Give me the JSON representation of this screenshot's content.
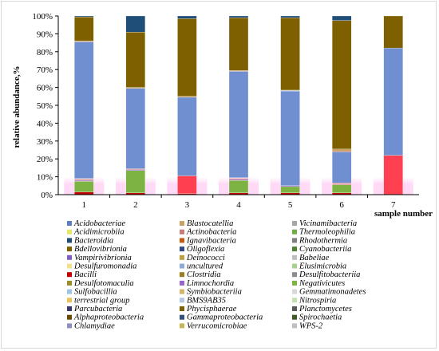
{
  "chart_data": {
    "type": "bar",
    "stacked": true,
    "percent_stacked": true,
    "ylabel": "relative abundance,%",
    "xlabel": "sample number",
    "ylim": [
      0,
      100
    ],
    "y_ticks": [
      "0%",
      "10%",
      "20%",
      "30%",
      "40%",
      "50%",
      "60%",
      "70%",
      "80%",
      "90%",
      "100%"
    ],
    "grid": false,
    "legend_position": "bottom",
    "categories": [
      "1",
      "2",
      "3",
      "4",
      "5",
      "6",
      "7"
    ],
    "series": [
      {
        "name": "Acidobacteriae",
        "color": "#5b7fbf",
        "values": [
          0,
          0,
          0,
          0,
          0,
          0,
          0
        ]
      },
      {
        "name": "Blastocatellia",
        "color": "#c9a066",
        "values": [
          0,
          0,
          0,
          0,
          0,
          0,
          0
        ]
      },
      {
        "name": "Vicinamibacteria",
        "color": "#a6a6a6",
        "values": [
          0,
          0,
          0,
          0,
          0,
          0,
          0
        ]
      },
      {
        "name": "Acidimicrobiia",
        "color": "#e5e566",
        "values": [
          0,
          0,
          0,
          0,
          0,
          0,
          0
        ]
      },
      {
        "name": "Actinobacteria",
        "color": "#c77b7b",
        "values": [
          0,
          0,
          0,
          0,
          0,
          0,
          0
        ]
      },
      {
        "name": "Thermoleophilia",
        "color": "#70ad47",
        "values": [
          0,
          0,
          0,
          0,
          0,
          0,
          0
        ]
      },
      {
        "name": "Bacteroidia",
        "color": "#1f4e79",
        "values": [
          0,
          0,
          0,
          0,
          0,
          0,
          0
        ]
      },
      {
        "name": "Ignavibacteria",
        "color": "#c55a11",
        "values": [
          0,
          0,
          0,
          0,
          0,
          0,
          0
        ]
      },
      {
        "name": "Rhodothermia",
        "color": "#7f7f7f",
        "values": [
          0,
          0,
          0,
          0,
          0,
          0,
          0
        ]
      },
      {
        "name": "Bdellovibrionia",
        "color": "#806000",
        "values": [
          0,
          0,
          0,
          0,
          0,
          0,
          0
        ]
      },
      {
        "name": "Oligoflexia",
        "color": "#2e4a87",
        "values": [
          0,
          0,
          0,
          0,
          0,
          0,
          0
        ]
      },
      {
        "name": "Cyanobacteriia",
        "color": "#548235",
        "values": [
          0,
          0,
          0,
          0,
          0,
          0,
          0
        ]
      },
      {
        "name": "Vampirivibrionia",
        "color": "#7f5fbf",
        "values": [
          0,
          0,
          0,
          0,
          0,
          0,
          0
        ]
      },
      {
        "name": "Deinococci",
        "color": "#bfa040",
        "values": [
          0,
          0,
          0,
          0,
          0,
          0,
          0
        ]
      },
      {
        "name": "Babeliae",
        "color": "#bfbfbf",
        "values": [
          0,
          0,
          0,
          0,
          0,
          0,
          0
        ]
      },
      {
        "name": "Desulfuromonadia",
        "color": "#f2e08c",
        "values": [
          0,
          0,
          0,
          0,
          0,
          0,
          0
        ]
      },
      {
        "name": "uncultured",
        "color": "#8eaadb",
        "values": [
          0,
          0,
          0,
          0,
          0,
          0,
          0
        ]
      },
      {
        "name": "Elusimicrobia",
        "color": "#a9d18e",
        "values": [
          0,
          0,
          0,
          0,
          0,
          0,
          0
        ]
      },
      {
        "name": "Bacilli",
        "color": "#c00000",
        "values": [
          0,
          0,
          0,
          0,
          0,
          0,
          0
        ]
      },
      {
        "name": "Clostridia",
        "color": "#9c7c1c",
        "values": [
          0,
          0,
          0,
          0,
          0,
          0,
          0
        ]
      },
      {
        "name": "Desulfitobacteriia",
        "color": "#8c8c8c",
        "values": [
          0,
          0,
          0,
          0,
          0,
          0,
          0
        ]
      },
      {
        "name": "Desulfotomaculia",
        "color": "#9e8c2c",
        "values": [
          0,
          0,
          0,
          0,
          0,
          0,
          0
        ]
      },
      {
        "name": "Limnochordia",
        "color": "#9966cc",
        "values": [
          0,
          0,
          0,
          0,
          0,
          0,
          0
        ]
      },
      {
        "name": "Negativicutes",
        "color": "#7cb342",
        "values": [
          0,
          0,
          0,
          0,
          0,
          0,
          0
        ]
      },
      {
        "name": "Sulfobacillia",
        "color": "#9dc3e6",
        "values": [
          0,
          0,
          0,
          0,
          0,
          0,
          0
        ]
      },
      {
        "name": "Symbiobacteriia",
        "color": "#d6b56a",
        "values": [
          0,
          0,
          0,
          0,
          0,
          0,
          0
        ]
      },
      {
        "name": "Gemmatimonadetes",
        "color": "#d9d9d9",
        "values": [
          0,
          0,
          0,
          0,
          0,
          0,
          0
        ]
      },
      {
        "name": "terrestrial group",
        "color": "#e6c35c",
        "values": [
          0,
          0,
          0,
          0,
          0,
          0,
          0
        ]
      },
      {
        "name": "BMS9AB35",
        "color": "#b4c7e7",
        "values": [
          0,
          0,
          0,
          0,
          0,
          0,
          0
        ]
      },
      {
        "name": "Nitrospiria",
        "color": "#c5e0b4",
        "values": [
          0,
          0,
          0,
          0,
          0,
          0,
          0
        ]
      },
      {
        "name": "Parcubacteria",
        "color": "#3a3a6a",
        "values": [
          0,
          0,
          0,
          0,
          0,
          0,
          0
        ]
      },
      {
        "name": "Phycisphaerae",
        "color": "#7f6000",
        "values": [
          0,
          0,
          0,
          0,
          0,
          0,
          0
        ]
      },
      {
        "name": "Planctomycetes",
        "color": "#595959",
        "values": [
          0,
          0,
          0,
          0,
          0,
          0,
          0
        ]
      },
      {
        "name": "Alphaproteobacteria",
        "color": "#6a4a00",
        "values": [
          0,
          0,
          0,
          0,
          0,
          0,
          0
        ]
      },
      {
        "name": "Gammaproteobacteria",
        "color": "#2f4f7f",
        "values": [
          0,
          0,
          0,
          0,
          0,
          0,
          0
        ]
      },
      {
        "name": "Spirochaetia",
        "color": "#3d5a27",
        "values": [
          0,
          0,
          0,
          0,
          0,
          0,
          0
        ]
      },
      {
        "name": "Chlamydiae",
        "color": "#8f8fbf",
        "values": [
          0,
          0,
          0,
          0,
          0,
          0,
          0
        ]
      },
      {
        "name": "Verrucomicrobiae",
        "color": "#c9b458",
        "values": [
          0,
          0,
          0,
          0,
          0,
          0,
          0
        ]
      },
      {
        "name": "WPS-2",
        "color": "#bfbfbf",
        "values": [
          0,
          0,
          0,
          0,
          0,
          0,
          0
        ]
      }
    ],
    "stacks": [
      {
        "name": "Bacilli",
        "color": "#c00000",
        "values": [
          1.5,
          1,
          0.5,
          1,
          1,
          1,
          0
        ]
      },
      {
        "name": "Negativicutes",
        "color": "#7cb342",
        "values": [
          6,
          12.5,
          0,
          7,
          3.5,
          4.5,
          0
        ]
      },
      {
        "name": "Clostridia",
        "color": "#ff4050",
        "values": [
          0,
          0,
          10,
          0,
          0,
          0,
          22
        ]
      },
      {
        "name": "Limnochordia",
        "color": "#9966cc",
        "values": [
          0.5,
          0.5,
          0,
          0.5,
          0.5,
          0,
          0
        ]
      },
      {
        "name": "Desulfotomaculia",
        "color": "#c77b7b",
        "values": [
          0.5,
          0.5,
          0,
          0.5,
          0,
          0.5,
          0
        ]
      },
      {
        "name": "Sulfobacillia",
        "color": "#f4b6c2",
        "values": [
          0.5,
          0,
          0,
          0.5,
          0,
          0,
          0
        ]
      },
      {
        "name": "Symbiobacteriia",
        "color": "#e57373",
        "values": [
          0,
          0,
          0,
          0,
          0,
          0.5,
          0
        ]
      },
      {
        "name": "Acidobacteriae",
        "color": "#6f8fd0",
        "values": [
          76.5,
          45,
          44,
          59.5,
          53,
          17.5,
          60
        ]
      },
      {
        "name": "Blastocatellia",
        "color": "#bfbfbf",
        "values": [
          0,
          0,
          0,
          0,
          0.5,
          0,
          0
        ]
      },
      {
        "name": "Ignavibacteria",
        "color": "#c55a11",
        "values": [
          0,
          0,
          0,
          0,
          0,
          0.5,
          0
        ]
      },
      {
        "name": "Actinobacteria",
        "color": "#c9a066",
        "values": [
          0.5,
          0.5,
          0.5,
          0.5,
          0,
          1,
          0
        ]
      },
      {
        "name": "Alphaproteobacteria",
        "color": "#7f6000",
        "values": [
          13.5,
          31,
          43.5,
          29.5,
          40.5,
          72,
          18
        ]
      },
      {
        "name": "Bacteroidia",
        "color": "#1f4e79",
        "values": [
          0.5,
          9,
          1.5,
          1,
          1,
          2.5,
          0
        ]
      }
    ]
  }
}
